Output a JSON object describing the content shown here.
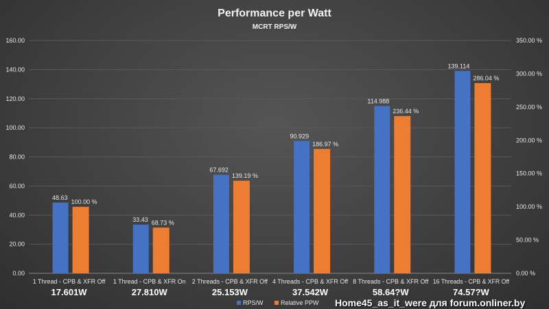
{
  "chart_data": {
    "type": "bar",
    "title": "Performance  per Watt",
    "subtitle": "MCRT RPS/W",
    "categories": [
      "1 Thread - CPB & XFR Off",
      "1 Thread - CPB & XFR On",
      "2 Threads - CPB & XFR Off",
      "4 Threads - CPB & XFR Off",
      "8 Threads - CPB & XFR Off",
      "16 Threads - CPB & XFR Off"
    ],
    "power_labels": [
      "17.601W",
      "27.810W",
      "25.153W",
      "37.542W",
      "58.64?W",
      "74.57?W"
    ],
    "series": [
      {
        "name": "RPS/W",
        "axis": "left",
        "color": "#4472C4",
        "values": [
          48.63,
          33.43,
          67.692,
          90.929,
          114.988,
          139.114
        ],
        "labels": [
          "48.63",
          "33.43",
          "67.692",
          "90.929",
          "114.988",
          "139.114"
        ]
      },
      {
        "name": "Relative PPW",
        "axis": "right",
        "color": "#ED7D31",
        "values": [
          100.0,
          68.73,
          139.19,
          186.97,
          236.44,
          286.04
        ],
        "labels": [
          "100.00 %",
          "68.73 %",
          "139.19 %",
          "186.97 %",
          "236.44 %",
          "286.04 %"
        ]
      }
    ],
    "ylim": [
      0,
      160
    ],
    "y_ticks": [
      "0.00",
      "20.00",
      "40.00",
      "60.00",
      "80.00",
      "100.00",
      "120.00",
      "140.00",
      "160.00"
    ],
    "y2lim": [
      0,
      350
    ],
    "y2_ticks": [
      "0.00 %",
      "50.00 %",
      "100.00 %",
      "150.00 %",
      "200.00 %",
      "250.00 %",
      "300.00 %",
      "350.00 %"
    ],
    "grid": true,
    "legend": "bottom"
  },
  "watermark": "Home45_as_it_were для forum.onliner.by"
}
